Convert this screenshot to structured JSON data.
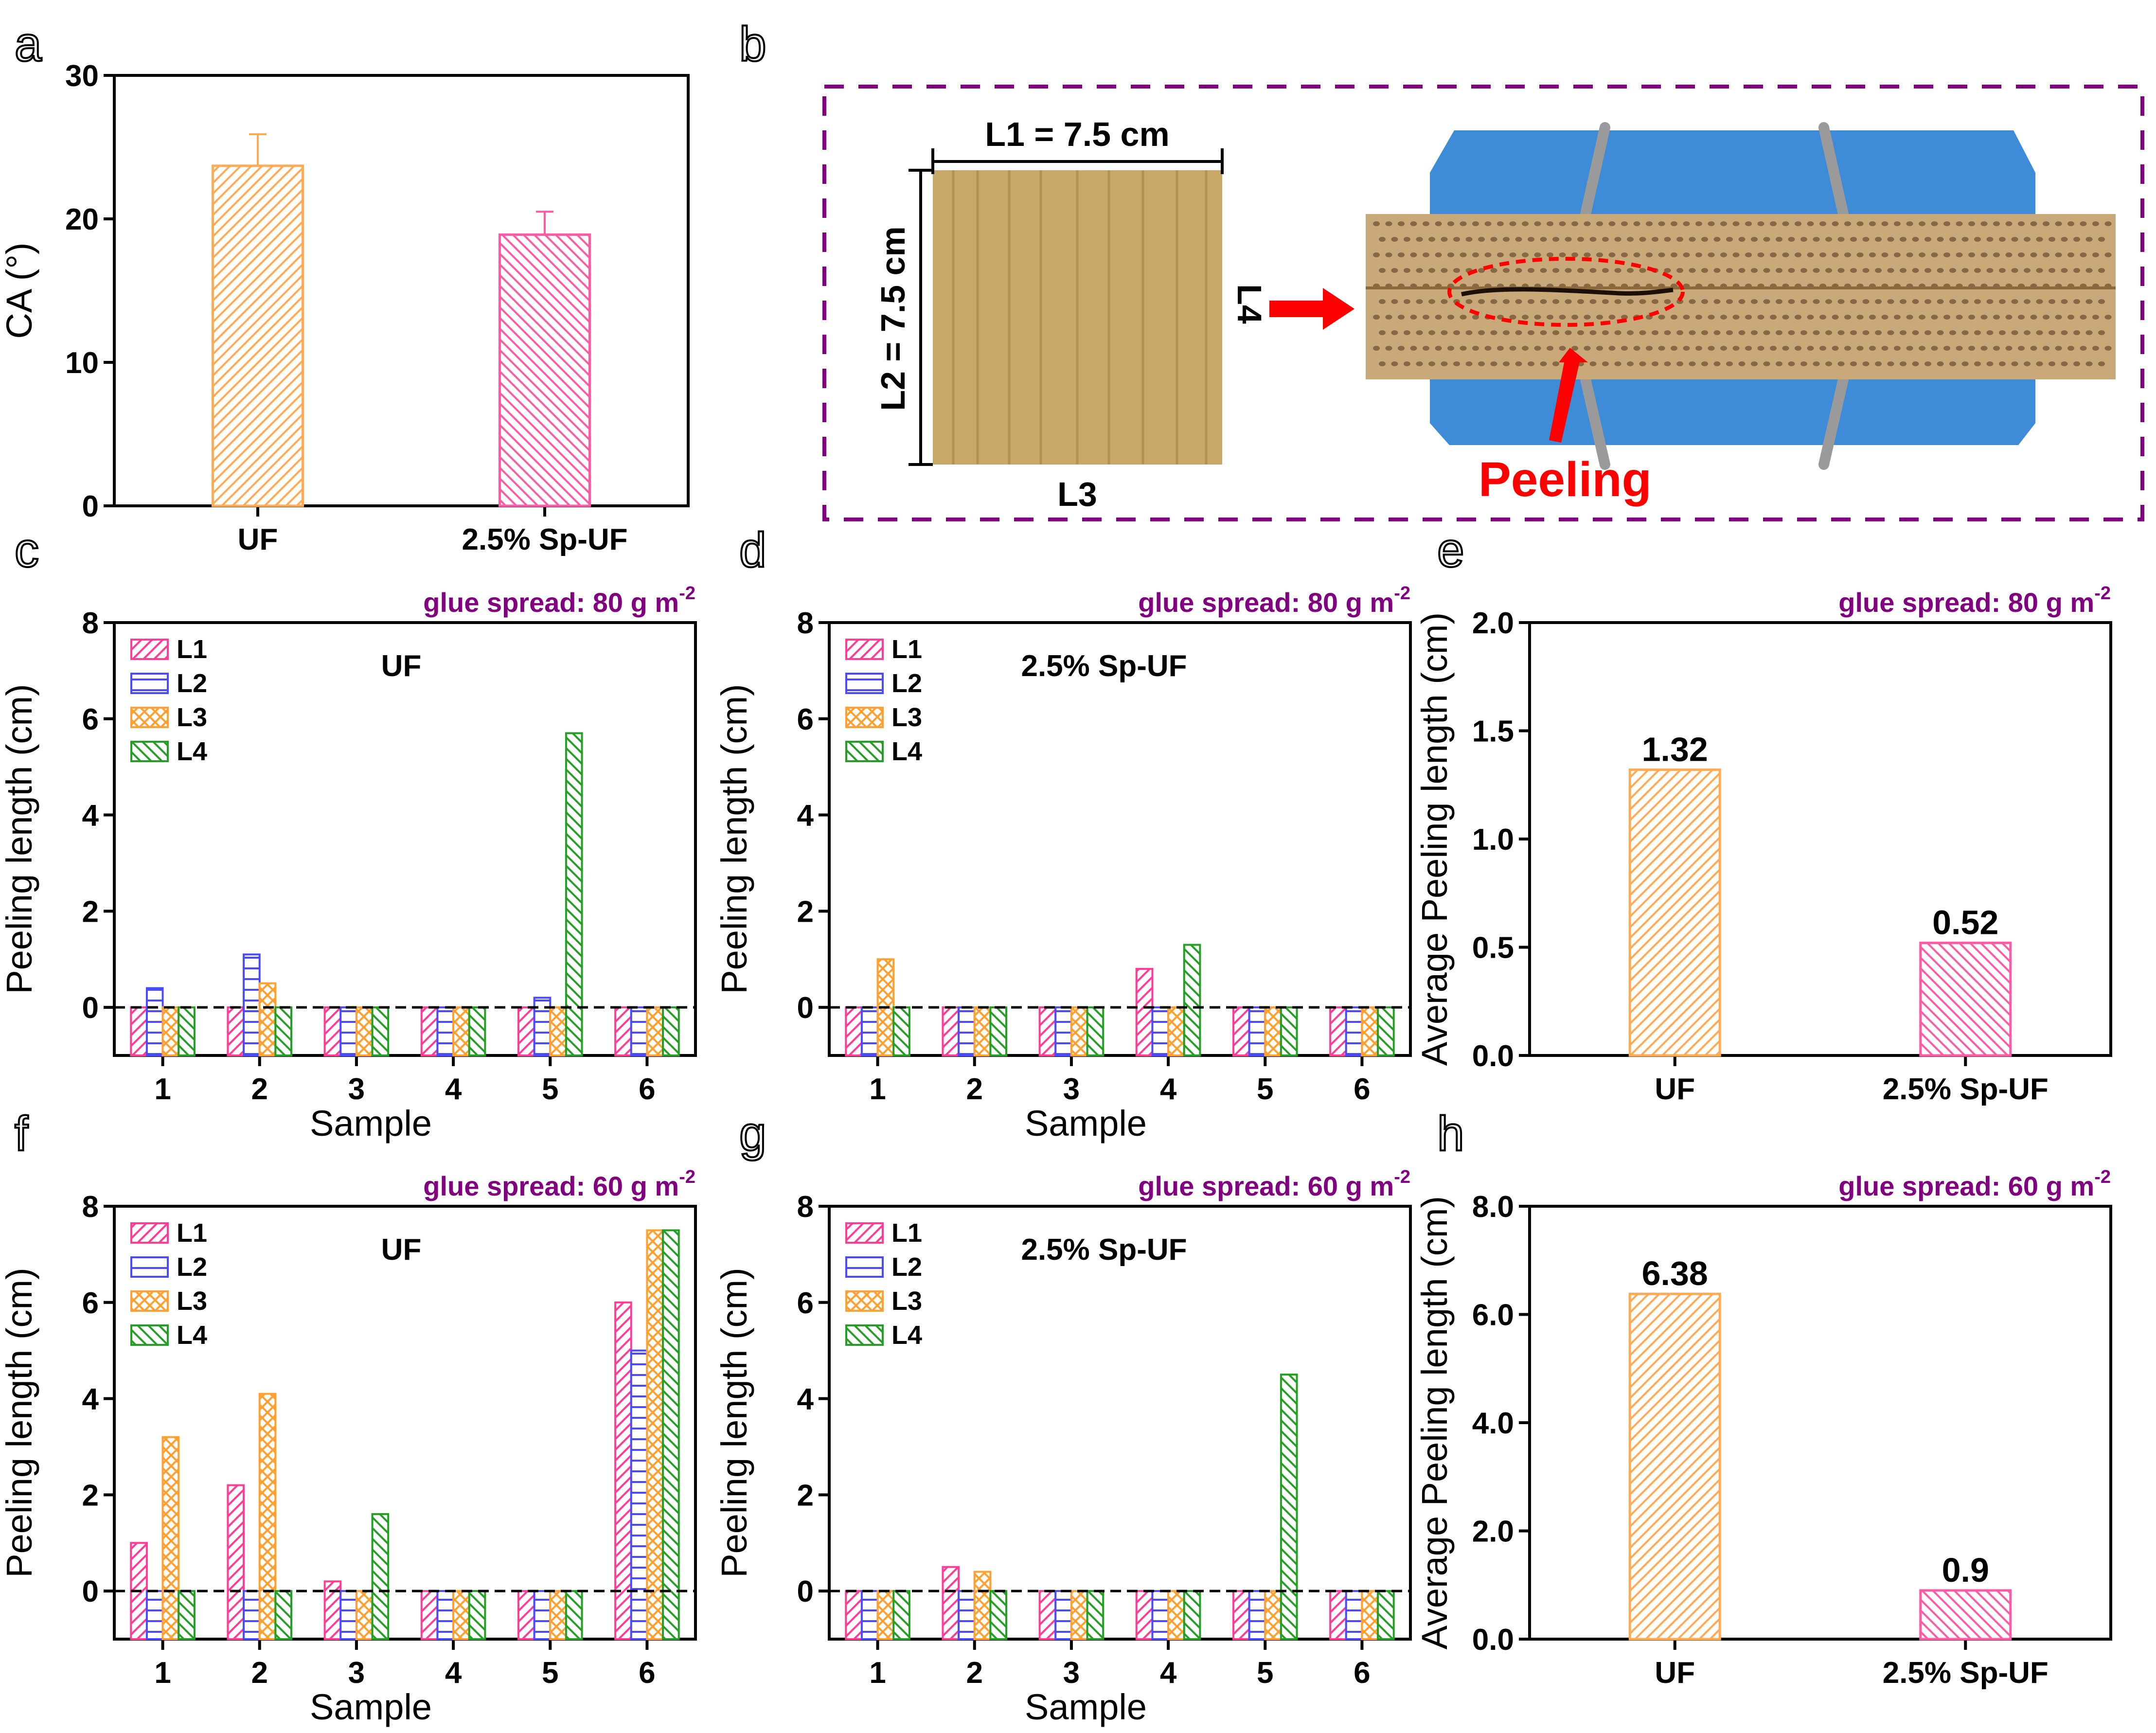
{
  "colors": {
    "pink": "#ff3c96",
    "blue": "#4a4aff",
    "orange": "#ffa030",
    "green": "#23a023",
    "uf": "#ffaa55",
    "spuf": "#ff5aa5",
    "purple": "#800080",
    "red": "#ff0000",
    "bamboo": "#c8a867",
    "blue_clamp": "#3e8bd8"
  },
  "panel_letters": {
    "a": "a",
    "b": "b",
    "c": "c",
    "d": "d",
    "e": "e",
    "f": "f",
    "g": "g",
    "h": "h"
  },
  "photo": {
    "l1_label": "L1 = 7.5 cm",
    "l2_label": "L2 = 7.5 cm",
    "l3_label": "L3",
    "l4_label": "L4",
    "peeling_label": "Peeling"
  },
  "chart_data": [
    {
      "panel": "a",
      "type": "bar",
      "categories": [
        "UF",
        "2.5% Sp-UF"
      ],
      "values": [
        23.7,
        18.9
      ],
      "errors": [
        2.2,
        1.6
      ],
      "ylabel": "CA (°)",
      "ylim": [
        0,
        30
      ],
      "yticks": [
        0,
        10,
        20,
        30
      ],
      "grid": false
    },
    {
      "panel": "c",
      "type": "bar",
      "title": "UF",
      "note": "glue spread: 80 g m",
      "note_sup": "-2",
      "xlabel": "Sample",
      "ylabel": "Peeling length (cm)",
      "categories": [
        "1",
        "2",
        "3",
        "4",
        "5",
        "6"
      ],
      "series": [
        {
          "name": "L1",
          "values": [
            0,
            0,
            0,
            0,
            0,
            0
          ]
        },
        {
          "name": "L2",
          "values": [
            0.4,
            1.1,
            0,
            0,
            0.2,
            0
          ]
        },
        {
          "name": "L3",
          "values": [
            0,
            0.5,
            0,
            0,
            0,
            0
          ]
        },
        {
          "name": "L4",
          "values": [
            0,
            0,
            0,
            0,
            5.7,
            0
          ]
        }
      ],
      "ylim": [
        -1,
        8
      ],
      "yticks": [
        0,
        2,
        4,
        6,
        8
      ],
      "legend": "top-left",
      "grid": false
    },
    {
      "panel": "d",
      "type": "bar",
      "title": "2.5% Sp-UF",
      "note": "glue spread: 80 g m",
      "note_sup": "-2",
      "xlabel": "Sample",
      "ylabel": "Peeling length (cm)",
      "categories": [
        "1",
        "2",
        "3",
        "4",
        "5",
        "6"
      ],
      "series": [
        {
          "name": "L1",
          "values": [
            0,
            0,
            0,
            0.8,
            0,
            0
          ]
        },
        {
          "name": "L2",
          "values": [
            0,
            0,
            0,
            0,
            0,
            0
          ]
        },
        {
          "name": "L3",
          "values": [
            1.0,
            0,
            0,
            0,
            0,
            0
          ]
        },
        {
          "name": "L4",
          "values": [
            0,
            0,
            0,
            1.3,
            0,
            0
          ]
        }
      ],
      "ylim": [
        -1,
        8
      ],
      "yticks": [
        0,
        2,
        4,
        6,
        8
      ],
      "legend": "top-left",
      "grid": false
    },
    {
      "panel": "e",
      "type": "bar",
      "note": "glue spread: 80 g m",
      "note_sup": "-2",
      "ylabel": "Average Peeling length (cm)",
      "categories": [
        "UF",
        "2.5% Sp-UF"
      ],
      "values": [
        1.32,
        0.52
      ],
      "data_labels": [
        "1.32",
        "0.52"
      ],
      "ylim": [
        0,
        2.0
      ],
      "yticks": [
        "0.0",
        "0.5",
        "1.0",
        "1.5",
        "2.0"
      ],
      "grid": false
    },
    {
      "panel": "f",
      "type": "bar",
      "title": "UF",
      "note": "glue spread: 60 g m",
      "note_sup": "-2",
      "xlabel": "Sample",
      "ylabel": "Peeling length (cm)",
      "categories": [
        "1",
        "2",
        "3",
        "4",
        "5",
        "6"
      ],
      "series": [
        {
          "name": "L1",
          "values": [
            1.0,
            2.2,
            0.2,
            0,
            0,
            6.0
          ]
        },
        {
          "name": "L2",
          "values": [
            0,
            0,
            0,
            0,
            0,
            5.0
          ]
        },
        {
          "name": "L3",
          "values": [
            3.2,
            4.1,
            0,
            0,
            0,
            7.5
          ]
        },
        {
          "name": "L4",
          "values": [
            0,
            0,
            1.6,
            0,
            0,
            7.5
          ]
        }
      ],
      "ylim": [
        -1,
        8
      ],
      "yticks": [
        0,
        2,
        4,
        6,
        8
      ],
      "legend": "top-left",
      "grid": false
    },
    {
      "panel": "g",
      "type": "bar",
      "title": "2.5% Sp-UF",
      "note": "glue spread: 60 g m",
      "note_sup": "-2",
      "xlabel": "Sample",
      "ylabel": "Peeling length (cm)",
      "categories": [
        "1",
        "2",
        "3",
        "4",
        "5",
        "6"
      ],
      "series": [
        {
          "name": "L1",
          "values": [
            0,
            0.5,
            0,
            0,
            0,
            0
          ]
        },
        {
          "name": "L2",
          "values": [
            0,
            0,
            0,
            0,
            0,
            0
          ]
        },
        {
          "name": "L3",
          "values": [
            0,
            0.4,
            0,
            0,
            0,
            0
          ]
        },
        {
          "name": "L4",
          "values": [
            0,
            0,
            0,
            0,
            4.5,
            0
          ]
        }
      ],
      "ylim": [
        -1,
        8
      ],
      "yticks": [
        0,
        2,
        4,
        6,
        8
      ],
      "legend": "top-left",
      "grid": false
    },
    {
      "panel": "h",
      "type": "bar",
      "note": "glue spread: 60 g m",
      "note_sup": "-2",
      "ylabel": "Average Peeling length (cm)",
      "categories": [
        "UF",
        "2.5% Sp-UF"
      ],
      "values": [
        6.38,
        0.9
      ],
      "data_labels": [
        "6.38",
        "0.9"
      ],
      "ylim": [
        0,
        8.0
      ],
      "yticks": [
        "0.0",
        "2.0",
        "4.0",
        "6.0",
        "8.0"
      ],
      "grid": false
    }
  ]
}
